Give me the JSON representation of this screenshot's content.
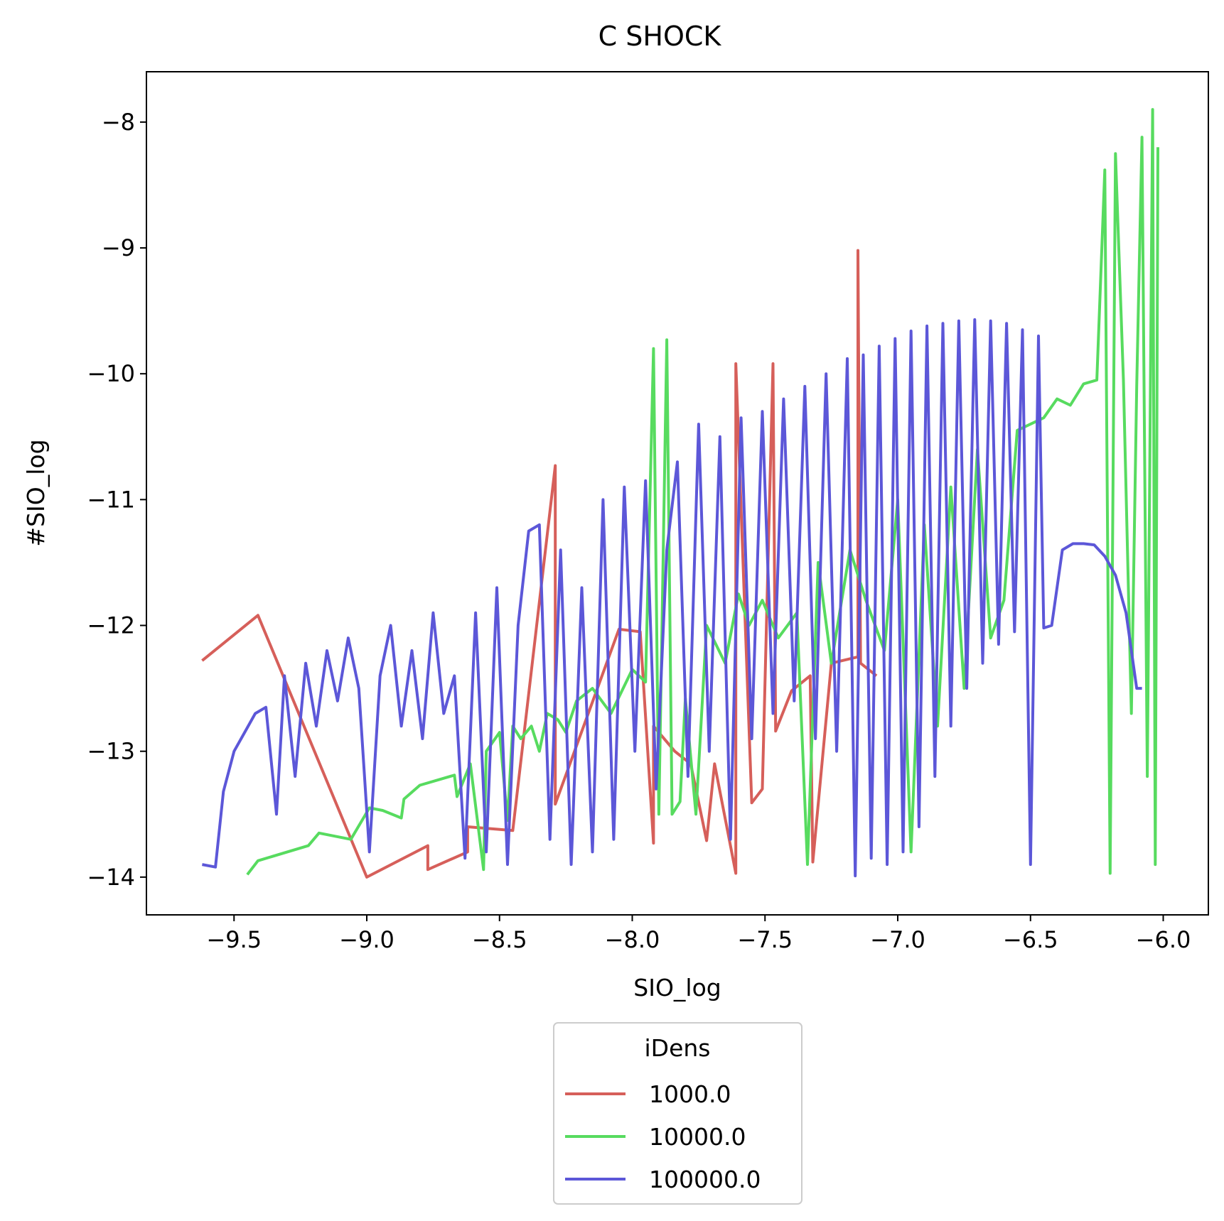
{
  "chart_data": {
    "type": "line",
    "title": "C SHOCK",
    "xlabel": "SIO_log",
    "ylabel": "#SIO_log",
    "xlim": [
      -9.83,
      -5.83
    ],
    "ylim": [
      -14.3,
      -7.6
    ],
    "xticks": [
      -9.5,
      -9.0,
      -8.5,
      -8.0,
      -7.5,
      -7.0,
      -6.5,
      -6.0
    ],
    "yticks": [
      -14,
      -13,
      -12,
      -11,
      -10,
      -9,
      -8
    ],
    "xtick_labels": [
      "−9.5",
      "−9.0",
      "−8.5",
      "−8.0",
      "−7.5",
      "−7.0",
      "−6.5",
      "−6.0"
    ],
    "ytick_labels": [
      "−14",
      "−13",
      "−12",
      "−11",
      "−10",
      "−9",
      "−8"
    ],
    "grid": false,
    "legend": {
      "title": "iDens",
      "placement": "bottom-center-outside"
    },
    "series": [
      {
        "name": "1000.0",
        "color": "#d65f5a",
        "x": [
          -9.62,
          -9.41,
          -9.0,
          -8.77,
          -8.77,
          -8.62,
          -8.62,
          -8.45,
          -8.29,
          -8.29,
          -8.05,
          -8.05,
          -7.97,
          -7.92,
          -7.92,
          -7.84,
          -7.78,
          -7.72,
          -7.69,
          -7.61,
          -7.61,
          -7.55,
          -7.51,
          -7.47,
          -7.46,
          -7.4,
          -7.33,
          -7.32,
          -7.25,
          -7.15,
          -7.15,
          -7.14,
          -7.08
        ],
        "y": [
          -12.28,
          -11.92,
          -14.0,
          -13.75,
          -13.94,
          -13.8,
          -13.6,
          -13.63,
          -10.73,
          -13.42,
          -12.03,
          -12.03,
          -12.05,
          -13.73,
          -12.8,
          -13.0,
          -13.1,
          -13.71,
          -13.1,
          -13.97,
          -9.92,
          -13.41,
          -13.3,
          -9.92,
          -12.84,
          -12.52,
          -12.4,
          -13.88,
          -12.3,
          -12.25,
          -9.02,
          -12.3,
          -12.4
        ]
      },
      {
        "name": "10000.0",
        "color": "#57db5f",
        "x": [
          -9.45,
          -9.41,
          -9.22,
          -9.18,
          -9.06,
          -8.99,
          -8.94,
          -8.87,
          -8.86,
          -8.8,
          -8.67,
          -8.66,
          -8.61,
          -8.56,
          -8.55,
          -8.5,
          -8.47,
          -8.45,
          -8.42,
          -8.38,
          -8.35,
          -8.32,
          -8.28,
          -8.25,
          -8.21,
          -8.15,
          -8.08,
          -8.0,
          -7.95,
          -7.92,
          -7.9,
          -7.87,
          -7.85,
          -7.82,
          -7.8,
          -7.76,
          -7.72,
          -7.65,
          -7.6,
          -7.56,
          -7.51,
          -7.45,
          -7.38,
          -7.34,
          -7.3,
          -7.25,
          -7.18,
          -7.12,
          -7.05,
          -7.0,
          -6.95,
          -6.9,
          -6.85,
          -6.8,
          -6.75,
          -6.7,
          -6.65,
          -6.6,
          -6.55,
          -6.5,
          -6.45,
          -6.4,
          -6.35,
          -6.3,
          -6.25,
          -6.22,
          -6.2,
          -6.18,
          -6.15,
          -6.12,
          -6.1,
          -6.08,
          -6.06,
          -6.04,
          -6.03,
          -6.02
        ],
        "y": [
          -13.98,
          -13.87,
          -13.75,
          -13.65,
          -13.7,
          -13.45,
          -13.47,
          -13.53,
          -13.38,
          -13.27,
          -13.19,
          -13.36,
          -13.1,
          -13.94,
          -13.0,
          -12.85,
          -13.55,
          -12.8,
          -12.9,
          -12.8,
          -13.0,
          -12.7,
          -12.75,
          -12.85,
          -12.6,
          -12.5,
          -12.7,
          -12.35,
          -12.45,
          -9.8,
          -13.5,
          -9.73,
          -13.5,
          -13.4,
          -12.58,
          -13.5,
          -12.0,
          -12.3,
          -11.75,
          -12.0,
          -11.8,
          -12.1,
          -11.9,
          -13.9,
          -11.5,
          -12.3,
          -11.4,
          -11.8,
          -12.2,
          -11.0,
          -13.8,
          -11.2,
          -12.8,
          -10.9,
          -12.5,
          -10.6,
          -12.1,
          -11.8,
          -10.45,
          -10.4,
          -10.35,
          -10.2,
          -10.25,
          -10.08,
          -10.05,
          -8.38,
          -13.97,
          -8.25,
          -10.05,
          -12.7,
          -10.1,
          -8.12,
          -13.2,
          -7.9,
          -13.9,
          -8.2
        ]
      },
      {
        "name": "100000.0",
        "color": "#5c57d8",
        "x": [
          -9.62,
          -9.57,
          -9.54,
          -9.5,
          -9.46,
          -9.42,
          -9.38,
          -9.34,
          -9.31,
          -9.27,
          -9.23,
          -9.19,
          -9.15,
          -9.11,
          -9.07,
          -9.03,
          -8.99,
          -8.95,
          -8.91,
          -8.87,
          -8.83,
          -8.79,
          -8.75,
          -8.71,
          -8.67,
          -8.63,
          -8.59,
          -8.55,
          -8.51,
          -8.47,
          -8.43,
          -8.39,
          -8.35,
          -8.31,
          -8.27,
          -8.23,
          -8.19,
          -8.15,
          -8.11,
          -8.07,
          -8.03,
          -7.99,
          -7.95,
          -7.91,
          -7.87,
          -7.83,
          -7.79,
          -7.75,
          -7.71,
          -7.67,
          -7.63,
          -7.59,
          -7.55,
          -7.51,
          -7.47,
          -7.43,
          -7.39,
          -7.35,
          -7.31,
          -7.27,
          -7.23,
          -7.19,
          -7.16,
          -7.13,
          -7.1,
          -7.07,
          -7.04,
          -7.01,
          -6.98,
          -6.95,
          -6.92,
          -6.89,
          -6.86,
          -6.83,
          -6.8,
          -6.77,
          -6.74,
          -6.71,
          -6.68,
          -6.65,
          -6.62,
          -6.59,
          -6.56,
          -6.53,
          -6.5,
          -6.47,
          -6.45,
          -6.42,
          -6.38,
          -6.34,
          -6.3,
          -6.26,
          -6.22,
          -6.18,
          -6.14,
          -6.1,
          -6.08
        ],
        "y": [
          -13.9,
          -13.92,
          -13.32,
          -13.0,
          -12.85,
          -12.7,
          -12.65,
          -13.5,
          -12.4,
          -13.2,
          -12.3,
          -12.8,
          -12.2,
          -12.6,
          -12.1,
          -12.5,
          -13.8,
          -12.4,
          -12.0,
          -12.8,
          -12.2,
          -12.9,
          -11.9,
          -12.7,
          -12.4,
          -13.85,
          -11.9,
          -13.8,
          -11.7,
          -13.9,
          -12.0,
          -11.25,
          -11.2,
          -13.7,
          -11.4,
          -13.9,
          -11.7,
          -13.8,
          -11.0,
          -13.7,
          -10.9,
          -13.0,
          -10.85,
          -13.3,
          -11.4,
          -10.7,
          -13.2,
          -10.4,
          -13.0,
          -10.5,
          -13.7,
          -10.35,
          -12.9,
          -10.3,
          -12.7,
          -10.2,
          -12.6,
          -10.1,
          -12.9,
          -10.0,
          -13.0,
          -9.88,
          -13.99,
          -9.85,
          -13.85,
          -9.78,
          -13.9,
          -9.72,
          -13.8,
          -9.66,
          -13.6,
          -9.62,
          -13.2,
          -9.6,
          -12.8,
          -9.58,
          -12.5,
          -9.57,
          -12.3,
          -9.58,
          -12.15,
          -9.6,
          -12.05,
          -9.65,
          -13.9,
          -9.7,
          -12.02,
          -12.0,
          -11.4,
          -11.35,
          -11.35,
          -11.36,
          -11.45,
          -11.6,
          -11.9,
          -12.5,
          -12.5
        ]
      }
    ]
  }
}
